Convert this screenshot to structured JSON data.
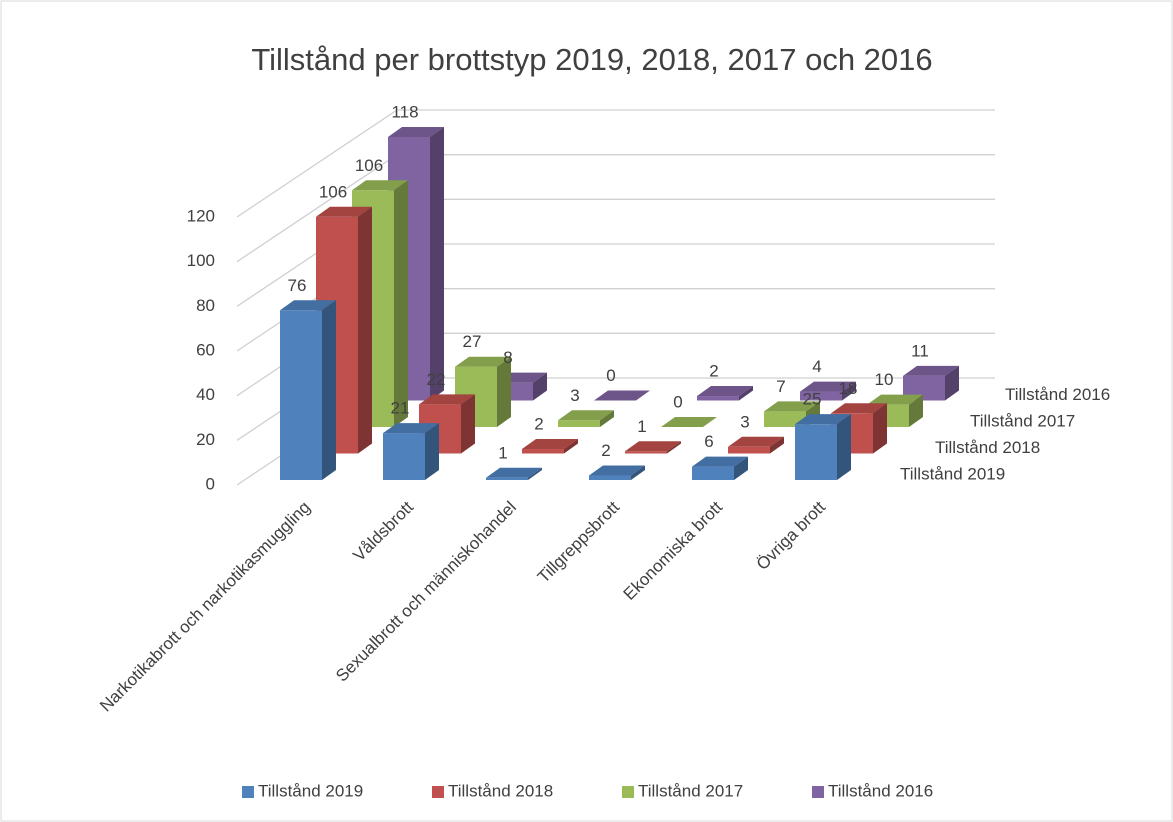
{
  "chart_data": {
    "type": "bar3d",
    "title": "Tillstånd per brottstyp 2019, 2018, 2017 och 2016",
    "categories": [
      "Narkotikabrott och narkotikasmuggling",
      "Våldsbrott",
      "Sexualbrott och människohandel",
      "Tillgreppsbrott",
      "Ekonomiska brott",
      "Övriga brott"
    ],
    "series": [
      {
        "name": "Tillstånd 2019",
        "color": "#4f81bd",
        "values": [
          76,
          21,
          1,
          2,
          6,
          25
        ]
      },
      {
        "name": "Tillstånd 2018",
        "color": "#c0504d",
        "values": [
          106,
          22,
          2,
          1,
          3,
          18
        ]
      },
      {
        "name": "Tillstånd 2017",
        "color": "#9bbb59",
        "values": [
          106,
          27,
          3,
          0,
          7,
          10
        ]
      },
      {
        "name": "Tillstånd 2016",
        "color": "#8064a2",
        "values": [
          118,
          8,
          0,
          2,
          4,
          11
        ]
      }
    ],
    "ylim": [
      0,
      120
    ],
    "yticks": [
      0,
      20,
      40,
      60,
      80,
      100,
      120
    ],
    "grid": true,
    "legend": "bottom"
  }
}
